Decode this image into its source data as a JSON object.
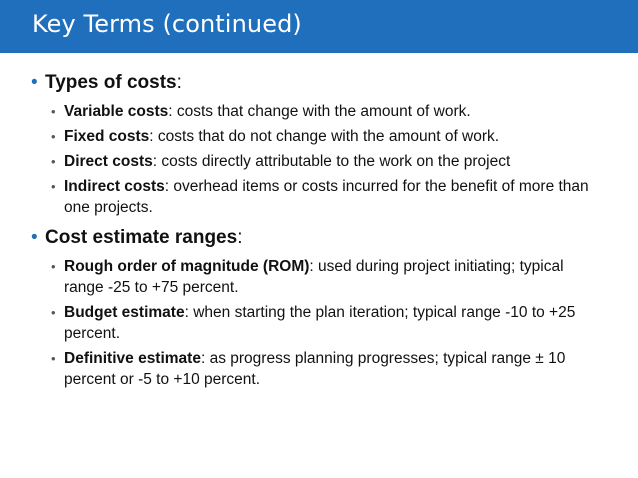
{
  "title": "Key Terms (continued)",
  "sections": [
    {
      "heading": "Types of costs",
      "heading_suffix": ":",
      "items": [
        {
          "term": "Variable costs",
          "text": ": costs that change with the amount of work."
        },
        {
          "term": "Fixed costs",
          "text": ": costs that do not change with the amount of work."
        },
        {
          "term": "Direct costs",
          "text": ": costs directly attributable to the work on the project"
        },
        {
          "term": "Indirect costs",
          "text": ": overhead items or costs incurred for the benefit of more than one projects."
        }
      ]
    },
    {
      "heading": "Cost estimate ranges",
      "heading_suffix": ":",
      "items": [
        {
          "term": "Rough order of magnitude (ROM)",
          "text": ": used during project initiating; typical range -25 to +75 percent."
        },
        {
          "term": "Budget estimate",
          "text": ": when starting the plan iteration; typical range -10 to +25 percent."
        },
        {
          "term": "Definitive estimate",
          "text": ": as progress planning progresses; typical range ± 10 percent or -5 to +10 percent."
        }
      ]
    }
  ],
  "colors": {
    "title_bar": "#1f6fbd",
    "bullet": "#1f6fbd"
  }
}
